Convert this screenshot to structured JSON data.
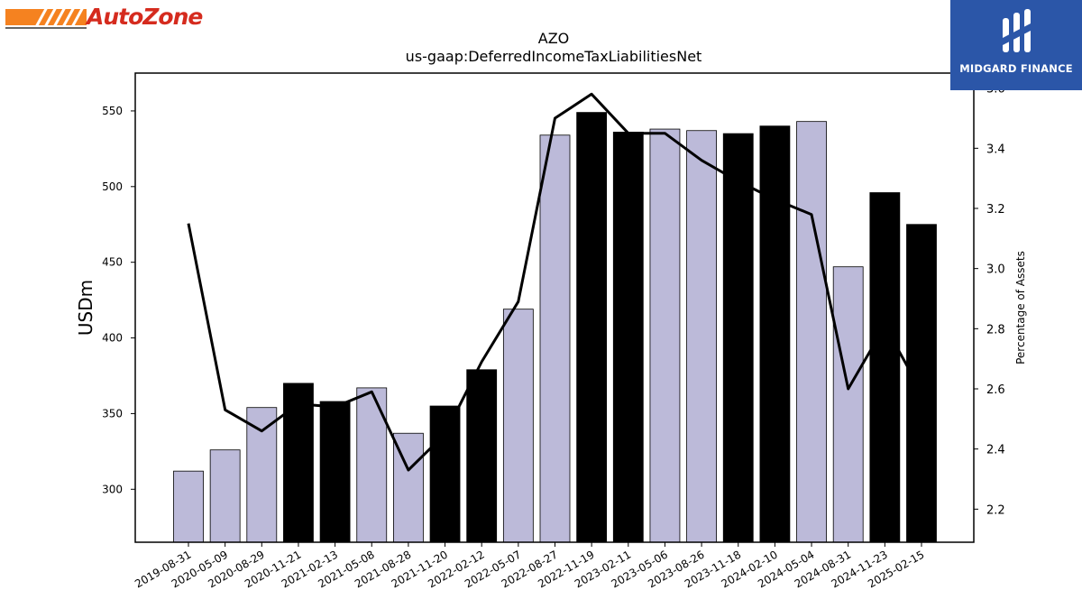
{
  "branding": {
    "left_logo_text": "AutoZone",
    "right_logo_text": "MIDGARD FINANCE",
    "colors": {
      "autozone_orange": "#f58220",
      "autozone_red": "#d52b1e",
      "midgard_blue": "#2b56a8"
    }
  },
  "chart_data": {
    "type": "bar",
    "title": "AZO",
    "subtitle": "us-gaap:DeferredIncomeTaxLiabilitiesNet",
    "ylabel": "USDm",
    "y2label": "Percentage of Assets",
    "ylim": [
      265,
      575
    ],
    "y2lim": [
      2.09,
      3.65
    ],
    "yticks": [
      300,
      350,
      400,
      450,
      500,
      550
    ],
    "y2ticks": [
      2.2,
      2.4,
      2.6,
      2.8,
      3.0,
      3.2,
      3.4,
      3.6
    ],
    "y2tick_labels": [
      "2.2",
      "2.4",
      "2.6",
      "2.8",
      "3.0",
      "3.2",
      "3.4",
      "3.6"
    ],
    "categories": [
      "2019-08-31",
      "2020-05-09",
      "2020-08-29",
      "2020-11-21",
      "2021-02-13",
      "2021-05-08",
      "2021-08-28",
      "2021-11-20",
      "2022-02-12",
      "2022-05-07",
      "2022-08-27",
      "2022-11-19",
      "2023-02-11",
      "2023-05-06",
      "2023-08-26",
      "2023-11-18",
      "2024-02-10",
      "2024-05-04",
      "2024-08-31",
      "2024-11-23",
      "2025-02-15"
    ],
    "series": [
      {
        "type": "bar",
        "axis": "left",
        "values": [
          312,
          326,
          354,
          370,
          358,
          367,
          337,
          355,
          379,
          419,
          534,
          549,
          536,
          538,
          537,
          535,
          540,
          543,
          447,
          496,
          475
        ],
        "colors": [
          "#bcbad9",
          "#bcbad9",
          "#bcbad9",
          "#000000",
          "#000000",
          "#bcbad9",
          "#bcbad9",
          "#000000",
          "#000000",
          "#bcbad9",
          "#bcbad9",
          "#000000",
          "#000000",
          "#bcbad9",
          "#bcbad9",
          "#000000",
          "#000000",
          "#bcbad9",
          "#bcbad9",
          "#000000",
          "#000000"
        ]
      },
      {
        "type": "line",
        "axis": "right",
        "color": "#000000",
        "values": [
          3.15,
          2.53,
          2.46,
          2.55,
          2.54,
          2.59,
          2.33,
          2.45,
          2.69,
          2.89,
          3.5,
          3.58,
          3.45,
          3.45,
          3.36,
          3.29,
          3.23,
          3.18,
          2.6,
          2.81,
          2.59
        ]
      }
    ],
    "grid": false,
    "legend": "none"
  }
}
